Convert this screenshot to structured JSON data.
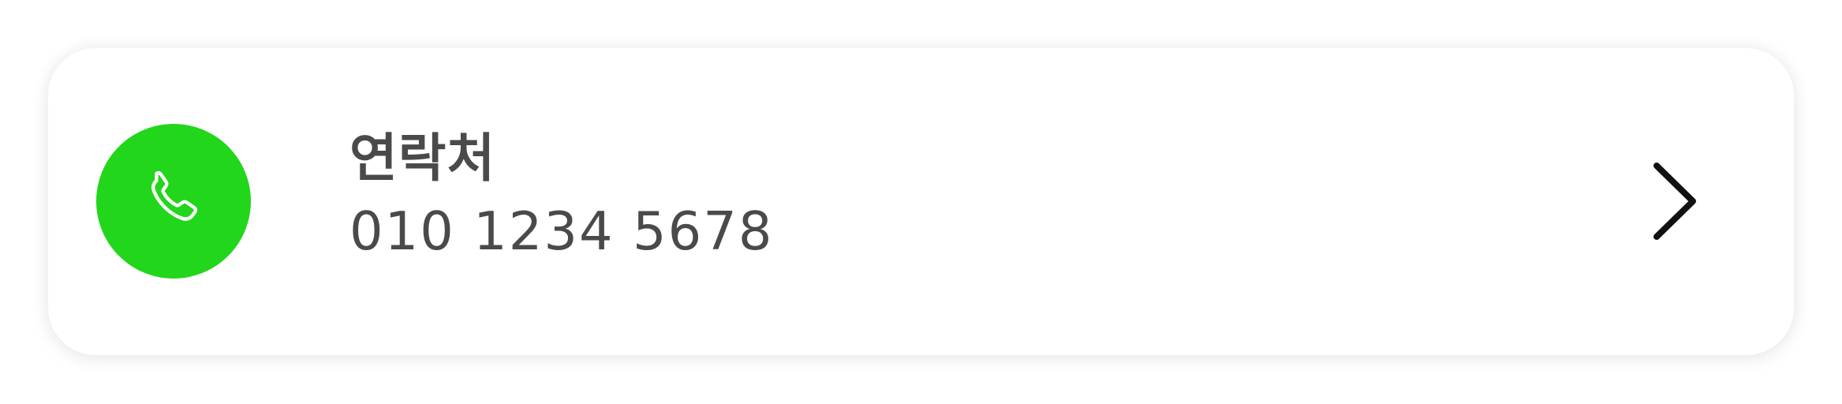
{
  "contact_card": {
    "title": "연락처",
    "phone_number": "010 1234 5678",
    "icon": "phone-icon",
    "action_icon": "chevron-right-icon",
    "accent_color": "#22d61b",
    "text_color": "#4a4a4a"
  }
}
